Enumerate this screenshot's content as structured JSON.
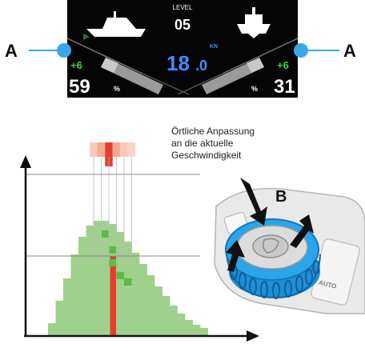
{
  "display": {
    "level_label": "LEVEL",
    "level_value": "05",
    "speed_whole": "18",
    "speed_decimal": ".0",
    "speed_unit": "KN",
    "left_delta": "+6",
    "left_value": "59",
    "left_unit": "%",
    "right_delta": "+6",
    "right_value": "31",
    "right_unit": "%",
    "colors": {
      "speed": "#3f8cff",
      "delta": "#39d13f",
      "screen": "#050505"
    }
  },
  "callouts": {
    "left_label": "A",
    "right_label": "A",
    "knob_label": "B",
    "callout_color": "#3aa8e8"
  },
  "annotation": {
    "line1": "Örtliche Anpassung",
    "line2": "an die aktuelle",
    "line3": "Geschwindigkeit"
  },
  "knob": {
    "auto_label": "AUTO"
  },
  "chart_data": {
    "type": "bar",
    "title": "",
    "xlabel": "",
    "ylabel": "",
    "ylim": [
      0,
      100
    ],
    "series": [
      {
        "values": [
          8,
          22,
          36,
          51,
          62,
          69,
          72,
          72,
          70,
          65,
          59,
          52,
          45,
          38,
          31,
          25,
          19,
          14,
          10,
          7,
          5
        ],
        "color": "#9fd08c"
      }
    ],
    "highlights": {
      "red_bar_index": 8,
      "darker_green": [
        {
          "index": 7,
          "value": 66
        },
        {
          "index": 7,
          "value": 56
        },
        {
          "index": 8,
          "value": 44
        },
        {
          "index": 9,
          "value": 34
        }
      ],
      "top_adjustment_colors": [
        "#f4b6a5",
        "#f07d66",
        "#e53e2c"
      ]
    },
    "grid": false
  }
}
